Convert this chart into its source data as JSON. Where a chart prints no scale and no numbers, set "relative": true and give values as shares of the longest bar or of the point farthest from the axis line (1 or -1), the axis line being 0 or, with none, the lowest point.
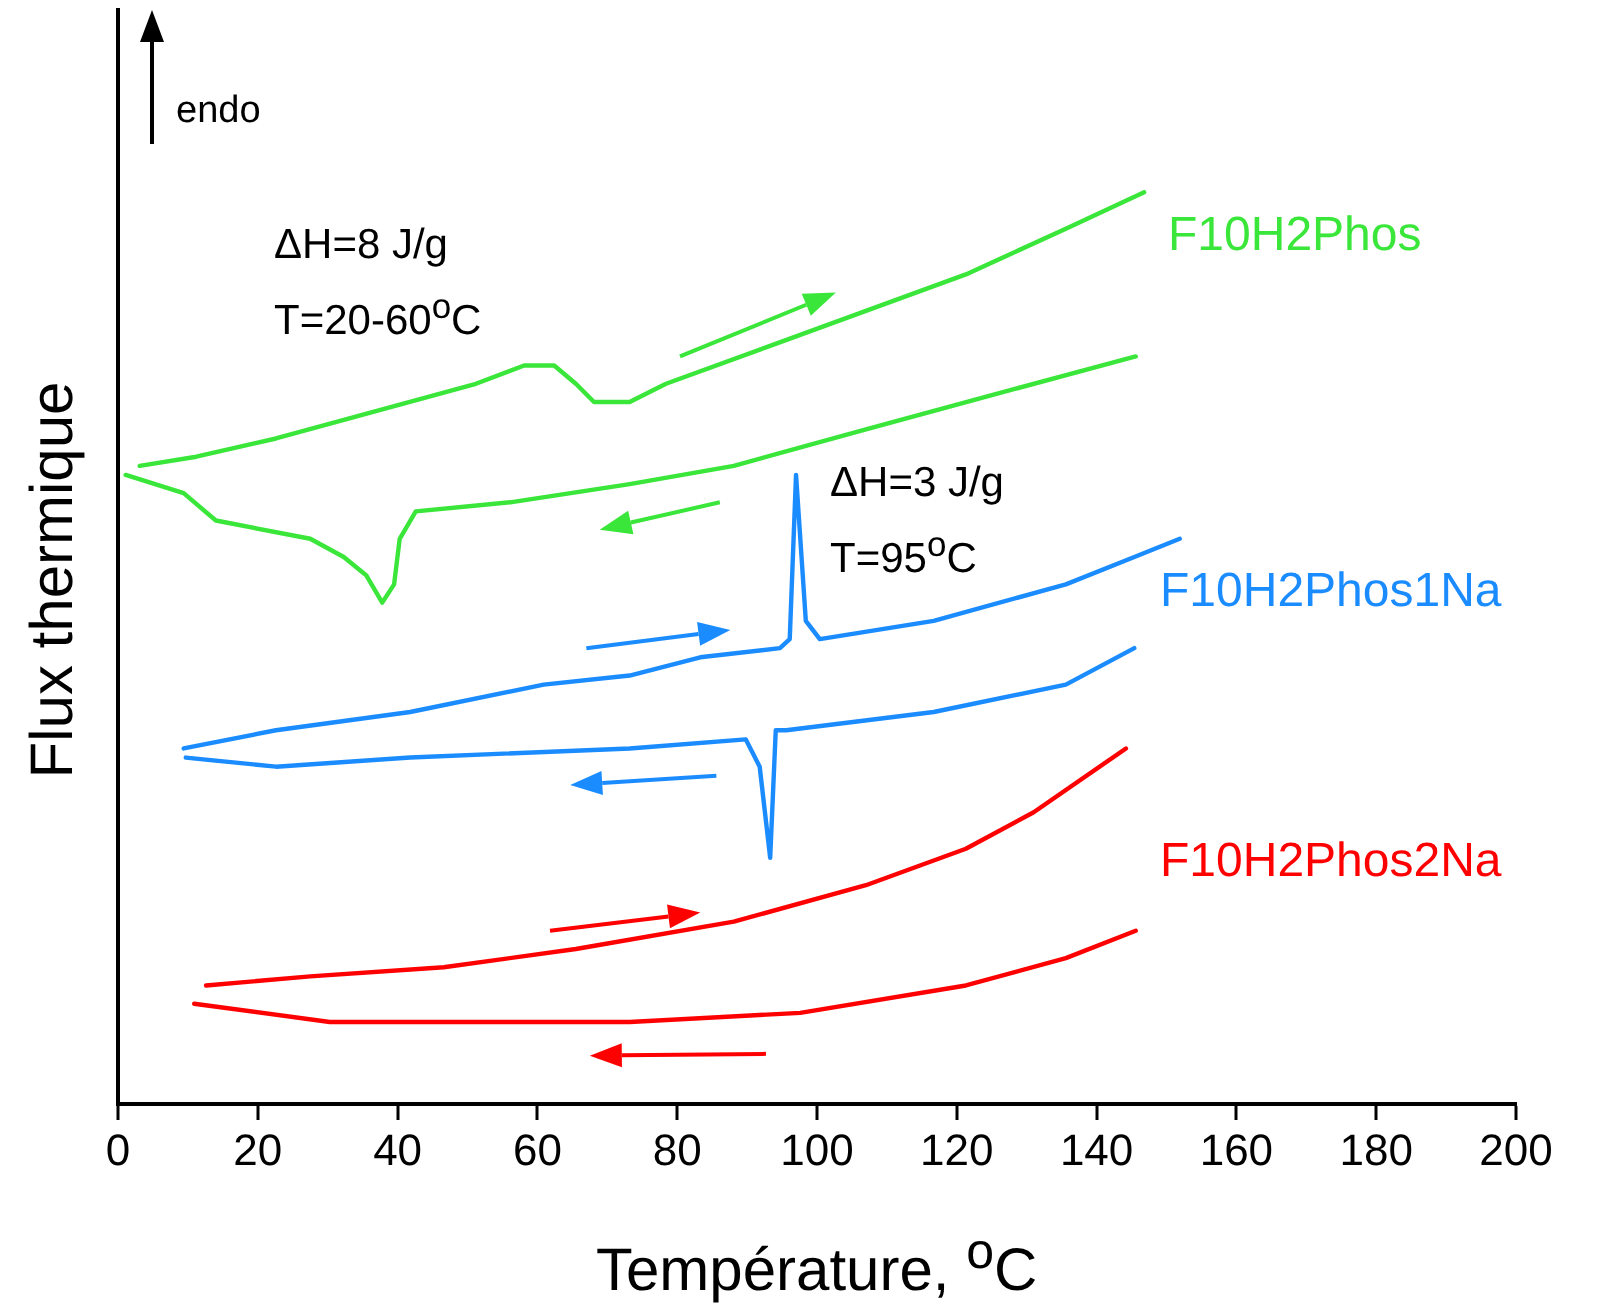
{
  "chart_data": {
    "type": "line",
    "relative": true,
    "xlabel": "Température, $^{o}$C",
    "ylabel": "Flux thermique",
    "xlim": [
      0,
      200
    ],
    "xticks": [
      0,
      20,
      40,
      60,
      80,
      100,
      120,
      140,
      160,
      180,
      200
    ],
    "grid": false,
    "legend": false,
    "marker": "none",
    "line_style": "solid",
    "annotations": [
      "endo",
      "ΔH=8 J/g",
      "T=20-60$^{o}$C",
      "ΔH=3 J/g",
      "T=95$^{o}$C"
    ],
    "series": [
      {
        "name": "F10H2Phos",
        "color": "#39e639",
        "x": [
          3.1,
          11.2,
          22.6,
          36.9,
          51.2,
          58.1,
          62.4,
          65.5,
          68.1,
          73.2,
          78.4,
          92.7,
          107,
          121.3,
          135.6,
          146.8
        ],
        "values": [
          0.7,
          0.71,
          0.73,
          0.76,
          0.79,
          0.81,
          0.81,
          0.79,
          0.77,
          0.77,
          0.79,
          0.83,
          0.87,
          0.91,
          0.96,
          1.0
        ]
      },
      {
        "color": "#39e639",
        "x": [
          1.1,
          9.4,
          14,
          27.5,
          32.3,
          35.5,
          37.8,
          39.5,
          40.3,
          42.6,
          56.1,
          73.2,
          88.1,
          107,
          126.2,
          145.6
        ],
        "values": [
          0.69,
          0.67,
          0.64,
          0.62,
          0.6,
          0.58,
          0.55,
          0.57,
          0.62,
          0.65,
          0.66,
          0.68,
          0.7,
          0.74,
          0.78,
          0.82
        ]
      },
      {
        "name": "F10H2Phos1Na",
        "color": "#1a8cff",
        "x": [
          9.4,
          22.6,
          41.8,
          60.9,
          73.2,
          83.3,
          94.7,
          96.1,
          97.0,
          98.4,
          100.4,
          116.7,
          135.6,
          145.4,
          151.9
        ],
        "values": [
          0.39,
          0.41,
          0.43,
          0.46,
          0.47,
          0.49,
          0.5,
          0.51,
          0.69,
          0.53,
          0.51,
          0.53,
          0.57,
          0.6,
          0.62
        ]
      },
      {
        "color": "#1a8cff",
        "x": [
          9.7,
          22.6,
          41.8,
          73.2,
          89.8,
          91.8,
          93.3,
          94.1,
          95.6,
          116.7,
          135.6,
          145.4
        ],
        "values": [
          0.38,
          0.37,
          0.38,
          0.39,
          0.4,
          0.37,
          0.27,
          0.41,
          0.41,
          0.43,
          0.46,
          0.5
        ]
      },
      {
        "name": "F10H2Phos2Na",
        "color": "#ff0000",
        "x": [
          12.6,
          27.5,
          46.6,
          65.5,
          88.1,
          107,
          121.3,
          131,
          144.2
        ],
        "values": [
          0.13,
          0.14,
          0.15,
          0.17,
          0.2,
          0.24,
          0.28,
          0.32,
          0.39
        ]
      },
      {
        "color": "#ff0000",
        "x": [
          10.9,
          30.3,
          46.6,
          73.2,
          97.6,
          121.3,
          135.6,
          145.6
        ],
        "values": [
          0.11,
          0.09,
          0.09,
          0.09,
          0.1,
          0.13,
          0.16,
          0.19
        ]
      }
    ]
  }
}
